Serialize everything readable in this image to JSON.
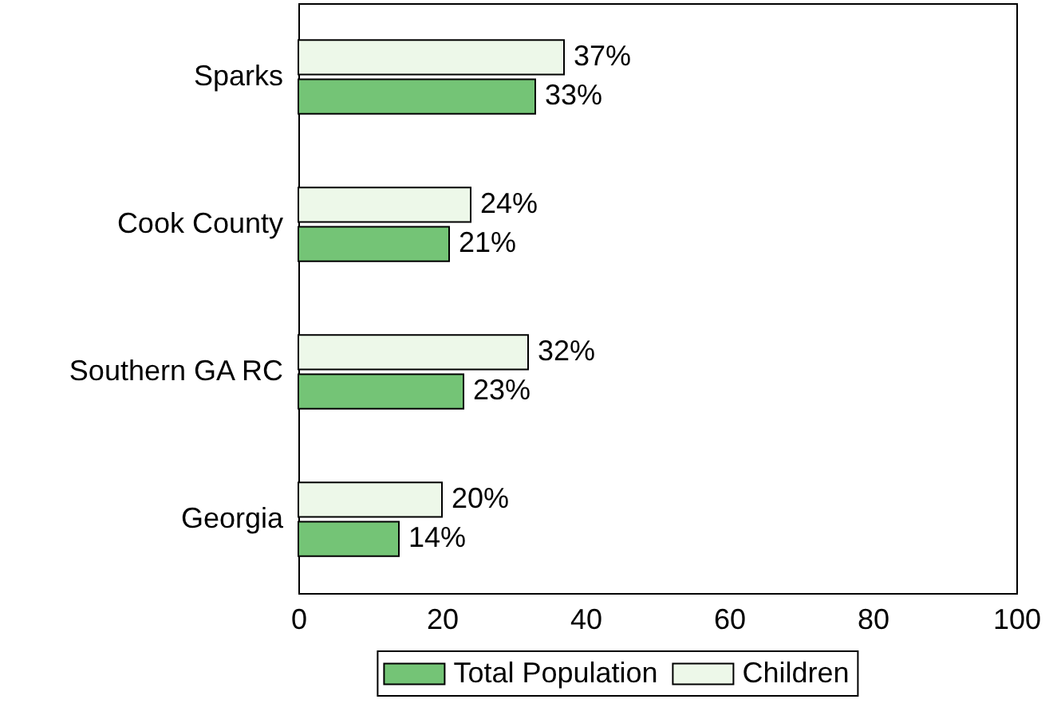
{
  "chart_data": {
    "type": "bar",
    "orientation": "horizontal",
    "categories": [
      "Sparks",
      "Cook County",
      "Southern GA RC",
      "Georgia"
    ],
    "series": [
      {
        "name": "Total Population",
        "color": "#74c476",
        "values": [
          33,
          21,
          23,
          14
        ],
        "value_labels": [
          "33%",
          "21%",
          "23%",
          "14%"
        ]
      },
      {
        "name": "Children",
        "color": "#edf8e9",
        "values": [
          37,
          24,
          32,
          20
        ],
        "value_labels": [
          "37%",
          "24%",
          "32%",
          "20%"
        ]
      }
    ],
    "xlim": [
      0,
      100
    ],
    "xticks": [
      0,
      20,
      40,
      60,
      80,
      100
    ],
    "legend": "bottom"
  }
}
